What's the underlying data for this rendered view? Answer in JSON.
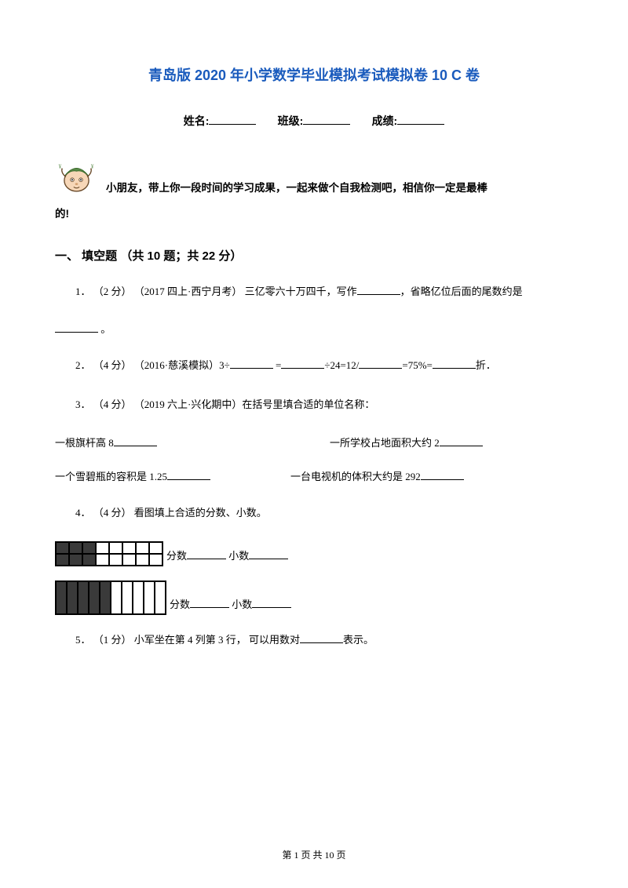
{
  "title": "青岛版 2020 年小学数学毕业模拟考试模拟卷 10  C 卷",
  "info": {
    "name_label": "姓名:",
    "class_label": "班级:",
    "score_label": "成绩:"
  },
  "intro_line1": "小朋友，带上你一段时间的学习成果，一起来做个自我检测吧，相信你一定是最棒",
  "intro_line2": "的!",
  "section1": {
    "heading": "一、 填空题 （共 10 题；共 22 分）"
  },
  "q1": {
    "prefix": "1．  （2 分） （2017 四上·西宁月考） 三亿零六十万四千，写作",
    "suffix": "，省略亿位后面的尾数约是",
    "end": " 。"
  },
  "q2": {
    "prefix": "2．  （4 分） （2016·慈溪模拟）3÷",
    "mid1": "  =",
    "mid2": "÷24=12/",
    "mid3": "=75%=",
    "end": "折．"
  },
  "q3": {
    "prefix": "3．  （4 分） （2019 六上·兴化期中）在括号里填合适的单位名称：",
    "row1_l": "一根旗杆高 8",
    "row1_r": "一所学校占地面积大约 2",
    "row2_l": "一个雪碧瓶的容积是 1.25",
    "row2_r": "一台电视机的体积大约是 292"
  },
  "q4": {
    "prefix": "4．  （4 分）  看图填上合适的分数、小数。",
    "label_frac": "分数",
    "label_dec": "小数"
  },
  "q5": {
    "prefix": "5．  （1 分）  小军坐在第 4 列第 3  行，  可以用数对",
    "suffix": "表示。"
  },
  "footer": {
    "text": "第  1  页 共  10  页"
  },
  "mascot": {
    "face": "#f7d7b8",
    "hat": "#5a8a4a",
    "line": "#6a4a2a"
  },
  "grid1": {
    "cols": 8,
    "rows": 2,
    "fill": [
      0,
      1,
      2,
      8,
      9,
      10
    ]
  },
  "grid2": {
    "cols": 10,
    "rows": 1,
    "fill": [
      0,
      1,
      2,
      3,
      4
    ]
  }
}
